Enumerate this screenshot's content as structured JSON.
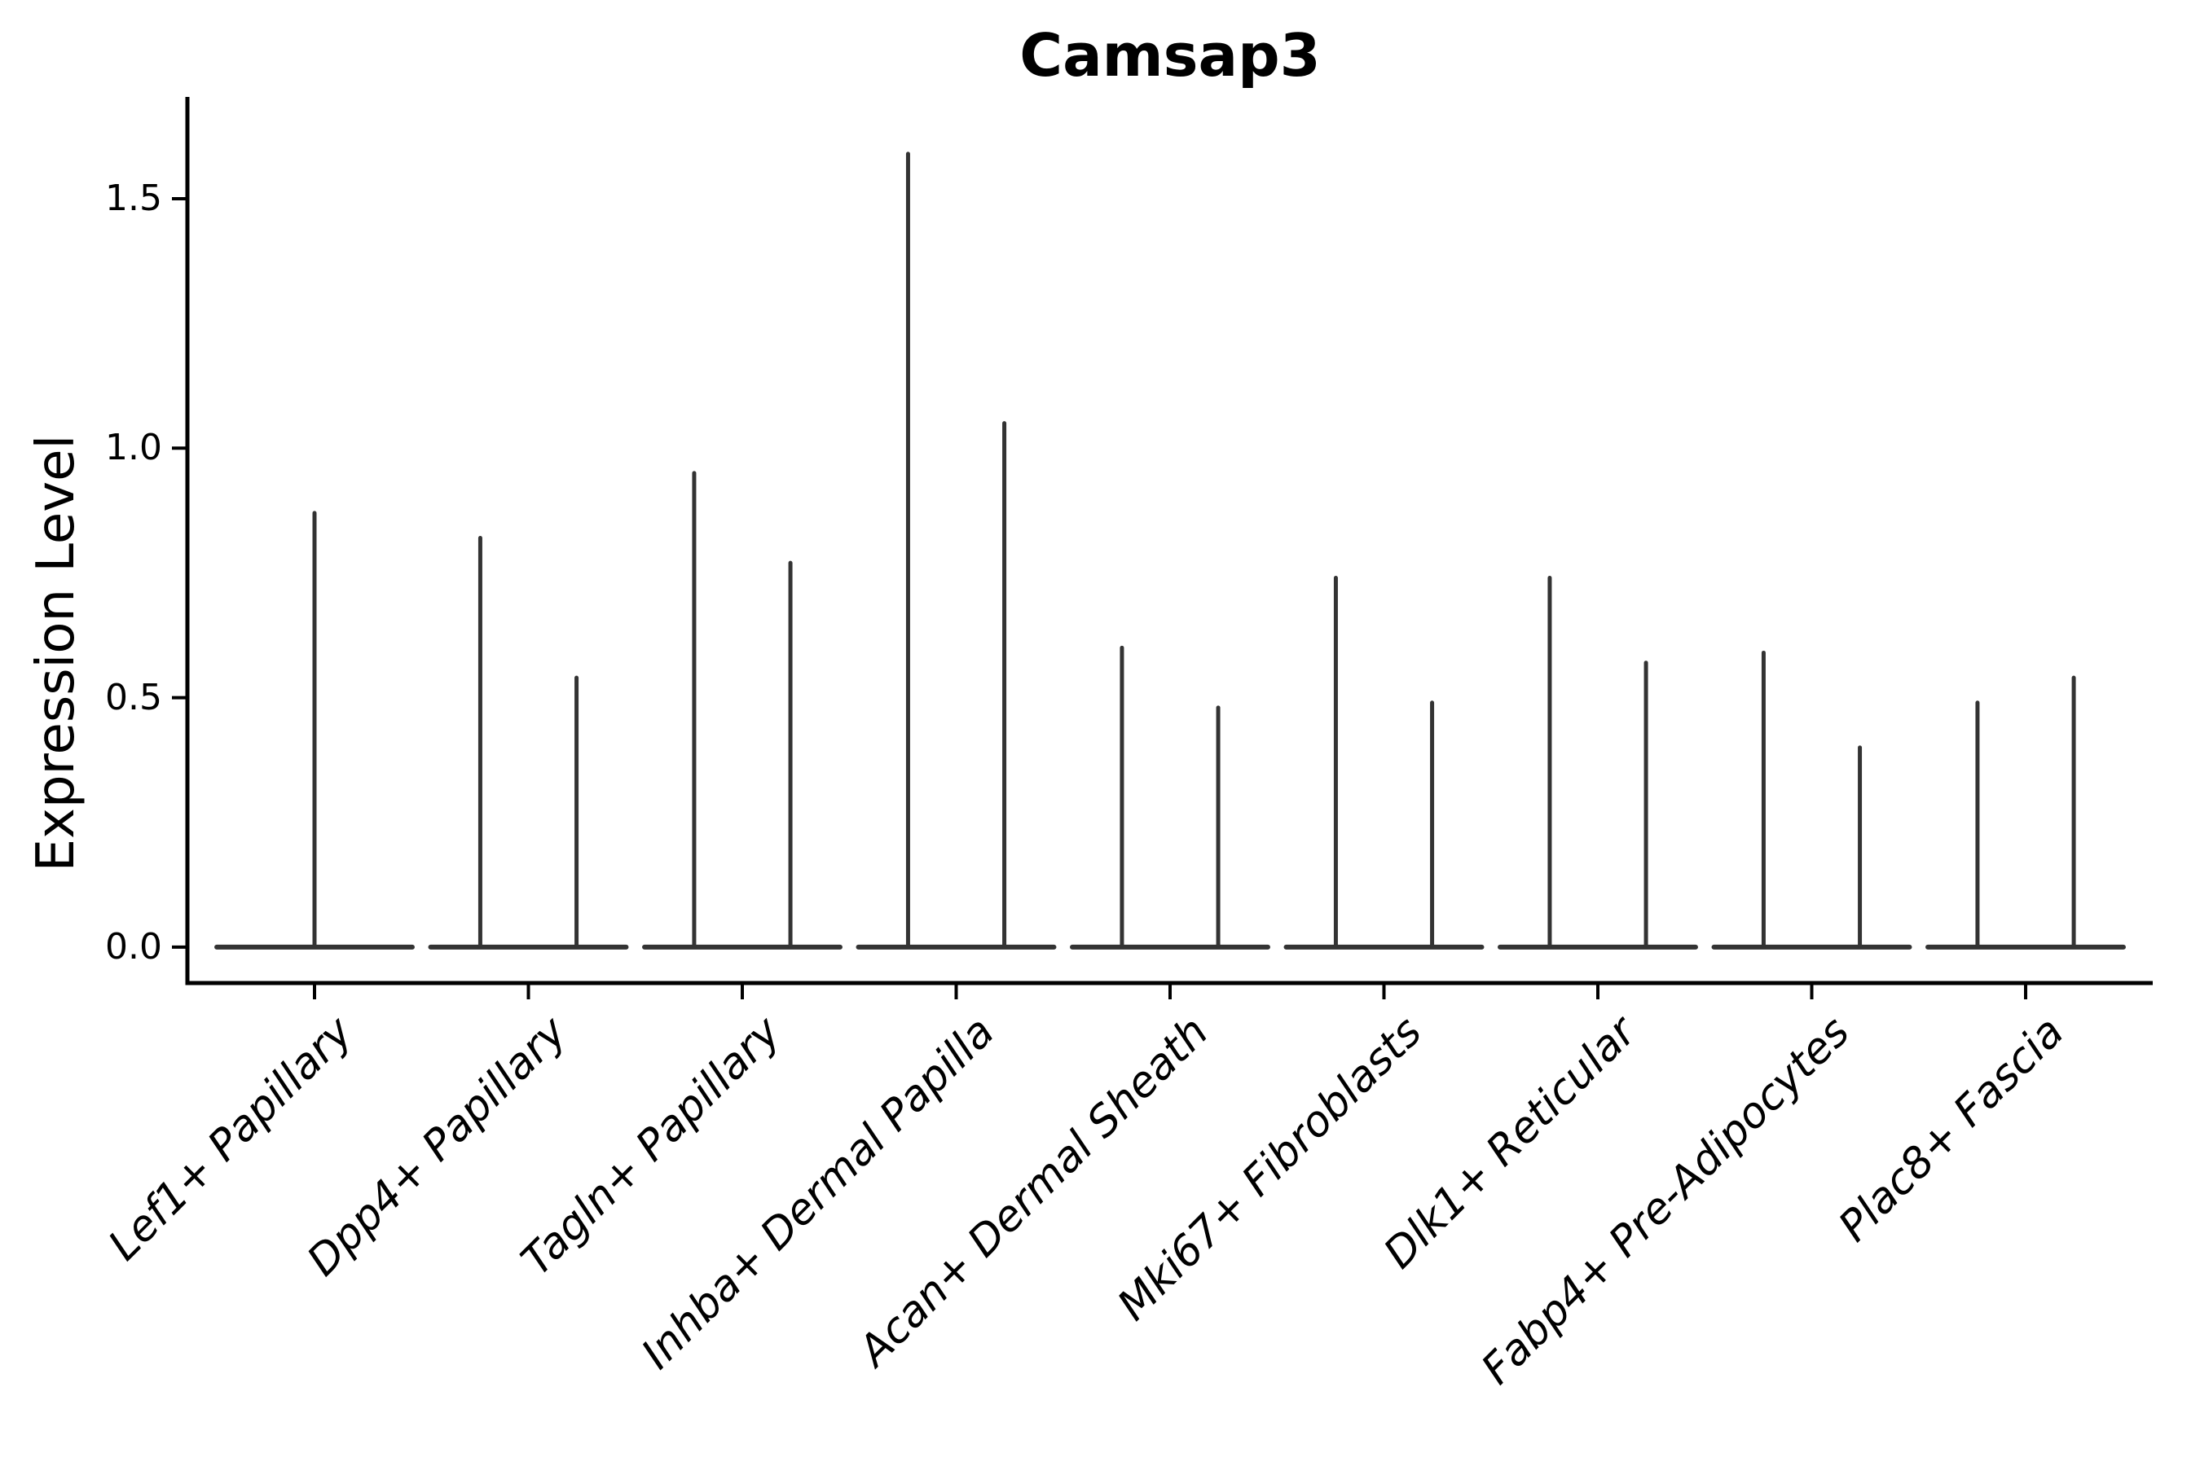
{
  "title": "Camsap3",
  "chart_data": {
    "type": "violin",
    "title": "Camsap3",
    "ylabel": "Expression Level",
    "xlabel": "",
    "grid": false,
    "legend": null,
    "ylim": [
      -0.072,
      1.704
    ],
    "ytick_values": [
      0.0,
      0.5,
      1.0,
      1.5
    ],
    "ytick_labels": [
      "0.0",
      "0.5",
      "1.0",
      "1.5"
    ],
    "categories": [
      "Lef1+ Papillary",
      "Dpp4+ Papillary",
      "Tagln+ Papillary",
      "Inhba+ Dermal Papilla",
      "Acan+ Dermal Sheath",
      "Mki67+ Fibroblasts",
      "Dlk1+ Reticular",
      "Fabp4+ Pre-Adipocytes",
      "Plac8+ Fascia"
    ],
    "violins": [
      {
        "category": "Lef1+ Papillary",
        "spikes": [
          {
            "dx": 0.0,
            "max": 0.87
          }
        ]
      },
      {
        "category": "Dpp4+ Papillary",
        "spikes": [
          {
            "dx": -0.225,
            "max": 0.82
          },
          {
            "dx": 0.225,
            "max": 0.54
          }
        ]
      },
      {
        "category": "Tagln+ Papillary",
        "spikes": [
          {
            "dx": -0.225,
            "max": 0.95
          },
          {
            "dx": 0.225,
            "max": 0.77
          }
        ]
      },
      {
        "category": "Inhba+ Dermal Papilla",
        "spikes": [
          {
            "dx": -0.225,
            "max": 1.59
          },
          {
            "dx": 0.225,
            "max": 1.05
          }
        ]
      },
      {
        "category": "Acan+ Dermal Sheath",
        "spikes": [
          {
            "dx": -0.225,
            "max": 0.6
          },
          {
            "dx": 0.225,
            "max": 0.48
          }
        ]
      },
      {
        "category": "Mki67+ Fibroblasts",
        "spikes": [
          {
            "dx": -0.225,
            "max": 0.74
          },
          {
            "dx": 0.225,
            "max": 0.49
          }
        ]
      },
      {
        "category": "Dlk1+ Reticular",
        "spikes": [
          {
            "dx": -0.225,
            "max": 0.74
          },
          {
            "dx": 0.225,
            "max": 0.57
          }
        ]
      },
      {
        "category": "Fabp4+ Pre-Adipocytes",
        "spikes": [
          {
            "dx": -0.225,
            "max": 0.59
          },
          {
            "dx": 0.225,
            "max": 0.4
          }
        ]
      },
      {
        "category": "Plac8+ Fascia",
        "spikes": [
          {
            "dx": -0.225,
            "max": 0.49
          },
          {
            "dx": 0.225,
            "max": 0.54
          }
        ]
      }
    ],
    "baseline_halfwidth": 0.457,
    "colors": {
      "violin": "#333333",
      "axis": "#000000",
      "text": "#000000",
      "background": "#ffffff"
    }
  }
}
